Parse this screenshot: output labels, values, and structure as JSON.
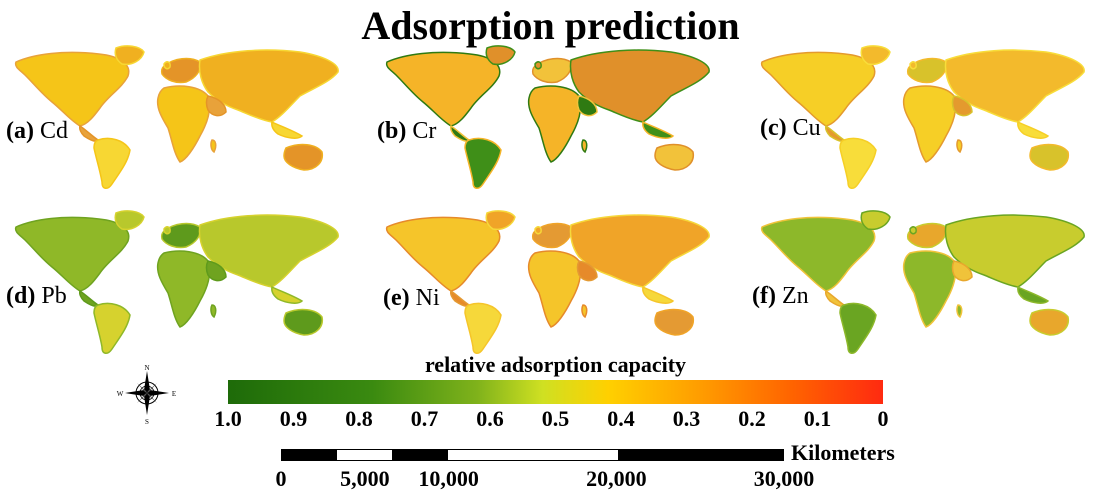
{
  "title": "Adsorption prediction",
  "panels": [
    {
      "letter": "(a)",
      "metal": "Cd",
      "palette": [
        "#f5c518",
        "#f0b020",
        "#e8a23a",
        "#f7d733",
        "#e49428"
      ]
    },
    {
      "letter": "(b)",
      "metal": "Cr",
      "palette": [
        "#f5b428",
        "#e0902a",
        "#2f7a12",
        "#3f8f18",
        "#f2c23a"
      ]
    },
    {
      "letter": "(c)",
      "metal": "Cu",
      "palette": [
        "#f6cf26",
        "#f3ba2c",
        "#e49a2e",
        "#f8dd3a",
        "#d8c22b"
      ]
    },
    {
      "letter": "(d)",
      "metal": "Pb",
      "palette": [
        "#8fb828",
        "#b8c82c",
        "#6fa320",
        "#d6d22e",
        "#5e9a1c"
      ]
    },
    {
      "letter": "(e)",
      "metal": "Ni",
      "palette": [
        "#f5c52a",
        "#f0a428",
        "#e68a2a",
        "#f6d83a",
        "#e49a33"
      ]
    },
    {
      "letter": "(f)",
      "metal": "Zn",
      "palette": [
        "#8db82a",
        "#c8cc2e",
        "#f0c33a",
        "#6aa522",
        "#e8a72c"
      ]
    }
  ],
  "colorbar": {
    "title": "relative adsorption capacity",
    "ticks": [
      "1.0",
      "0.9",
      "0.8",
      "0.7",
      "0.6",
      "0.5",
      "0.4",
      "0.3",
      "0.2",
      "0.1",
      "0"
    ]
  },
  "compass": {
    "n": "N",
    "s": "S",
    "e": "E",
    "w": "W"
  },
  "scalebar": {
    "unit": "Kilometers",
    "ticks": [
      "0",
      "5,000",
      "10,000",
      "20,000",
      "30,000"
    ]
  }
}
